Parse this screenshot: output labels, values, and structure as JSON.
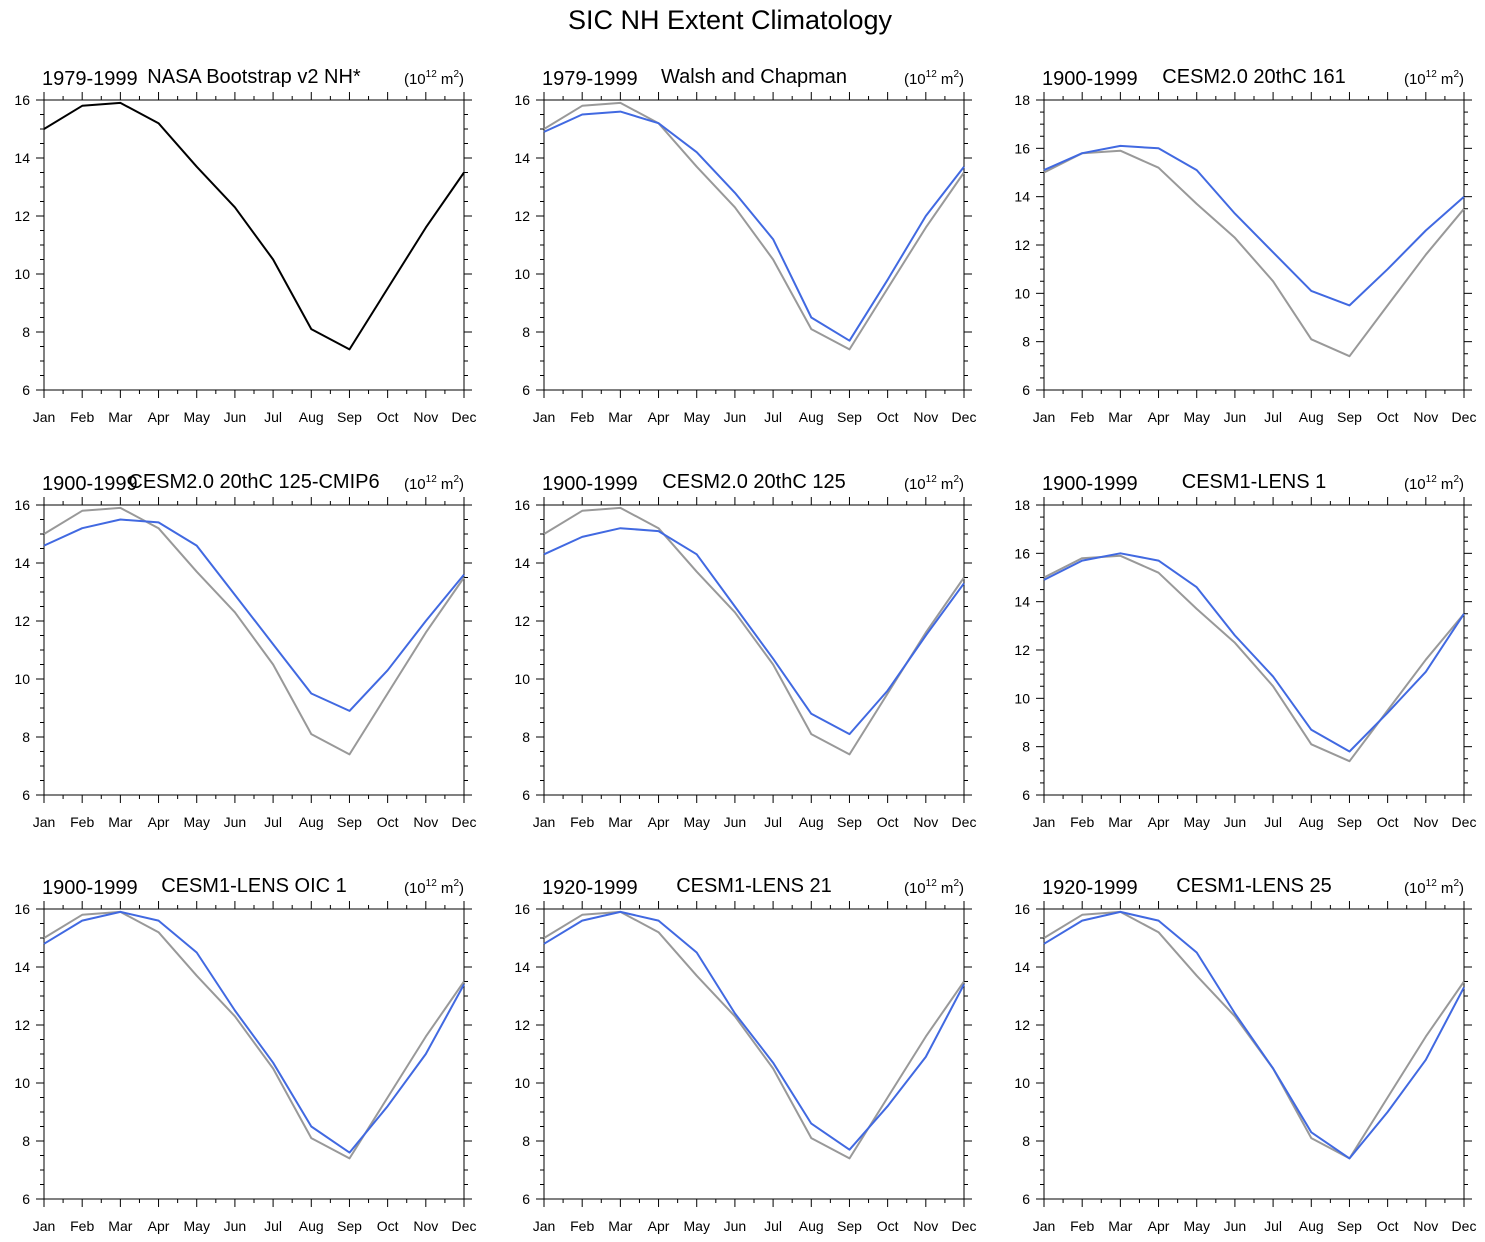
{
  "title": "SIC NH Extent Climatology",
  "units": {
    "prefix": "(10",
    "exp": "12",
    "mid": " m",
    "exp2": "2",
    "suffix": ")"
  },
  "colors": {
    "observed": "#999999",
    "model": "#4169E1",
    "reference_black": "#000000"
  },
  "chart_data": [
    {
      "type": "line",
      "period": "1979-1999",
      "title": "NASA Bootstrap v2 NH*",
      "categories": [
        "Jan",
        "Feb",
        "Mar",
        "Apr",
        "May",
        "Jun",
        "Jul",
        "Aug",
        "Sep",
        "Oct",
        "Nov",
        "Dec"
      ],
      "ylim": [
        6,
        16
      ],
      "yticks": [
        6,
        8,
        10,
        12,
        14,
        16
      ],
      "series": [
        {
          "name": "NASA Bootstrap v2 NH*",
          "color": "#000000",
          "values": [
            15.0,
            15.8,
            15.9,
            15.2,
            13.7,
            12.3,
            10.5,
            8.1,
            7.4,
            9.5,
            11.6,
            13.5
          ]
        }
      ]
    },
    {
      "type": "line",
      "period": "1979-1999",
      "title": "Walsh and Chapman",
      "categories": [
        "Jan",
        "Feb",
        "Mar",
        "Apr",
        "May",
        "Jun",
        "Jul",
        "Aug",
        "Sep",
        "Oct",
        "Nov",
        "Dec"
      ],
      "ylim": [
        6,
        16
      ],
      "yticks": [
        6,
        8,
        10,
        12,
        14,
        16
      ],
      "series": [
        {
          "name": "NASA Bootstrap v2 NH*",
          "color": "#999999",
          "values": [
            15.0,
            15.8,
            15.9,
            15.2,
            13.7,
            12.3,
            10.5,
            8.1,
            7.4,
            9.5,
            11.6,
            13.5
          ]
        },
        {
          "name": "Walsh and Chapman",
          "color": "#4169E1",
          "values": [
            14.9,
            15.5,
            15.6,
            15.2,
            14.2,
            12.8,
            11.2,
            8.5,
            7.7,
            9.8,
            12.0,
            13.7
          ]
        }
      ]
    },
    {
      "type": "line",
      "period": "1900-1999",
      "title": "CESM2.0 20thC 161",
      "categories": [
        "Jan",
        "Feb",
        "Mar",
        "Apr",
        "May",
        "Jun",
        "Jul",
        "Aug",
        "Sep",
        "Oct",
        "Nov",
        "Dec"
      ],
      "ylim": [
        6,
        18
      ],
      "yticks": [
        6,
        8,
        10,
        12,
        14,
        16,
        18
      ],
      "series": [
        {
          "name": "NASA Bootstrap v2 NH*",
          "color": "#999999",
          "values": [
            15.0,
            15.8,
            15.9,
            15.2,
            13.7,
            12.3,
            10.5,
            8.1,
            7.4,
            9.5,
            11.6,
            13.5
          ]
        },
        {
          "name": "CESM2.0 20thC 161",
          "color": "#4169E1",
          "values": [
            15.1,
            15.8,
            16.1,
            16.0,
            15.1,
            13.3,
            11.7,
            10.1,
            9.5,
            11.0,
            12.6,
            14.0
          ]
        }
      ]
    },
    {
      "type": "line",
      "period": "1900-1999",
      "title": "CESM2.0 20thC 125-CMIP6",
      "categories": [
        "Jan",
        "Feb",
        "Mar",
        "Apr",
        "May",
        "Jun",
        "Jul",
        "Aug",
        "Sep",
        "Oct",
        "Nov",
        "Dec"
      ],
      "ylim": [
        6,
        16
      ],
      "yticks": [
        6,
        8,
        10,
        12,
        14,
        16
      ],
      "series": [
        {
          "name": "NASA Bootstrap v2 NH*",
          "color": "#999999",
          "values": [
            15.0,
            15.8,
            15.9,
            15.2,
            13.7,
            12.3,
            10.5,
            8.1,
            7.4,
            9.5,
            11.6,
            13.5
          ]
        },
        {
          "name": "CESM2.0 20thC 125-CMIP6",
          "color": "#4169E1",
          "values": [
            14.6,
            15.2,
            15.5,
            15.4,
            14.6,
            12.9,
            11.2,
            9.5,
            8.9,
            10.3,
            12.0,
            13.6
          ]
        }
      ]
    },
    {
      "type": "line",
      "period": "1900-1999",
      "title": "CESM2.0 20thC 125",
      "categories": [
        "Jan",
        "Feb",
        "Mar",
        "Apr",
        "May",
        "Jun",
        "Jul",
        "Aug",
        "Sep",
        "Oct",
        "Nov",
        "Dec"
      ],
      "ylim": [
        6,
        16
      ],
      "yticks": [
        6,
        8,
        10,
        12,
        14,
        16
      ],
      "series": [
        {
          "name": "NASA Bootstrap v2 NH*",
          "color": "#999999",
          "values": [
            15.0,
            15.8,
            15.9,
            15.2,
            13.7,
            12.3,
            10.5,
            8.1,
            7.4,
            9.5,
            11.6,
            13.5
          ]
        },
        {
          "name": "CESM2.0 20thC 125",
          "color": "#4169E1",
          "values": [
            14.3,
            14.9,
            15.2,
            15.1,
            14.3,
            12.5,
            10.7,
            8.8,
            8.1,
            9.6,
            11.5,
            13.3
          ]
        }
      ]
    },
    {
      "type": "line",
      "period": "1900-1999",
      "title": "CESM1-LENS 1",
      "categories": [
        "Jan",
        "Feb",
        "Mar",
        "Apr",
        "May",
        "Jun",
        "Jul",
        "Aug",
        "Sep",
        "Oct",
        "Nov",
        "Dec"
      ],
      "ylim": [
        6,
        18
      ],
      "yticks": [
        6,
        8,
        10,
        12,
        14,
        16,
        18
      ],
      "series": [
        {
          "name": "NASA Bootstrap v2 NH*",
          "color": "#999999",
          "values": [
            15.0,
            15.8,
            15.9,
            15.2,
            13.7,
            12.3,
            10.5,
            8.1,
            7.4,
            9.5,
            11.6,
            13.5
          ]
        },
        {
          "name": "CESM1-LENS 1",
          "color": "#4169E1",
          "values": [
            14.9,
            15.7,
            16.0,
            15.7,
            14.6,
            12.6,
            10.9,
            8.7,
            7.8,
            9.4,
            11.1,
            13.5
          ]
        }
      ]
    },
    {
      "type": "line",
      "period": "1900-1999",
      "title": "CESM1-LENS OIC 1",
      "categories": [
        "Jan",
        "Feb",
        "Mar",
        "Apr",
        "May",
        "Jun",
        "Jul",
        "Aug",
        "Sep",
        "Oct",
        "Nov",
        "Dec"
      ],
      "ylim": [
        6,
        16
      ],
      "yticks": [
        6,
        8,
        10,
        12,
        14,
        16
      ],
      "series": [
        {
          "name": "NASA Bootstrap v2 NH*",
          "color": "#999999",
          "values": [
            15.0,
            15.8,
            15.9,
            15.2,
            13.7,
            12.3,
            10.5,
            8.1,
            7.4,
            9.5,
            11.6,
            13.5
          ]
        },
        {
          "name": "CESM1-LENS OIC 1",
          "color": "#4169E1",
          "values": [
            14.8,
            15.6,
            15.9,
            15.6,
            14.5,
            12.5,
            10.7,
            8.5,
            7.6,
            9.2,
            11.0,
            13.4
          ]
        }
      ]
    },
    {
      "type": "line",
      "period": "1920-1999",
      "title": "CESM1-LENS 21",
      "categories": [
        "Jan",
        "Feb",
        "Mar",
        "Apr",
        "May",
        "Jun",
        "Jul",
        "Aug",
        "Sep",
        "Oct",
        "Nov",
        "Dec"
      ],
      "ylim": [
        6,
        16
      ],
      "yticks": [
        6,
        8,
        10,
        12,
        14,
        16
      ],
      "series": [
        {
          "name": "NASA Bootstrap v2 NH*",
          "color": "#999999",
          "values": [
            15.0,
            15.8,
            15.9,
            15.2,
            13.7,
            12.3,
            10.5,
            8.1,
            7.4,
            9.5,
            11.6,
            13.5
          ]
        },
        {
          "name": "CESM1-LENS 21",
          "color": "#4169E1",
          "values": [
            14.8,
            15.6,
            15.9,
            15.6,
            14.5,
            12.4,
            10.7,
            8.6,
            7.7,
            9.2,
            10.9,
            13.4
          ]
        }
      ]
    },
    {
      "type": "line",
      "period": "1920-1999",
      "title": "CESM1-LENS 25",
      "categories": [
        "Jan",
        "Feb",
        "Mar",
        "Apr",
        "May",
        "Jun",
        "Jul",
        "Aug",
        "Sep",
        "Oct",
        "Nov",
        "Dec"
      ],
      "ylim": [
        6,
        16
      ],
      "yticks": [
        6,
        8,
        10,
        12,
        14,
        16
      ],
      "series": [
        {
          "name": "NASA Bootstrap v2 NH*",
          "color": "#999999",
          "values": [
            15.0,
            15.8,
            15.9,
            15.2,
            13.7,
            12.3,
            10.5,
            8.1,
            7.4,
            9.5,
            11.6,
            13.5
          ]
        },
        {
          "name": "CESM1-LENS 25",
          "color": "#4169E1",
          "values": [
            14.8,
            15.6,
            15.9,
            15.6,
            14.5,
            12.4,
            10.5,
            8.3,
            7.4,
            9.0,
            10.8,
            13.3
          ]
        }
      ]
    }
  ]
}
